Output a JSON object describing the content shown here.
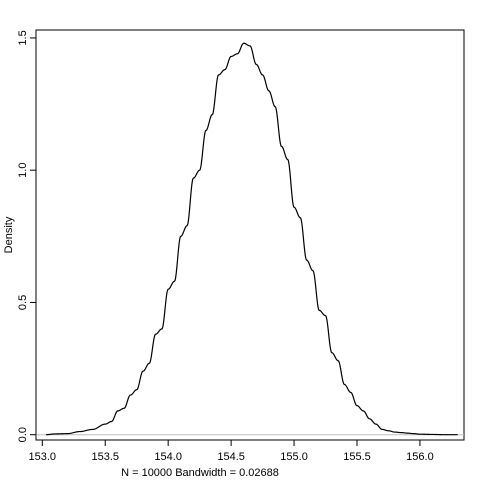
{
  "chart_data": {
    "type": "line",
    "title": "",
    "xlabel": "N = 10000   Bandwidth = 0.02688",
    "ylabel": "Density",
    "xlim": [
      152.95,
      156.35
    ],
    "ylim": [
      -0.02,
      1.53
    ],
    "x_ticks": [
      153.0,
      153.5,
      154.0,
      154.5,
      155.0,
      155.5,
      156.0
    ],
    "x_tick_labels": [
      "153.0",
      "153.5",
      "154.0",
      "154.5",
      "155.0",
      "155.5",
      "156.0"
    ],
    "y_ticks": [
      0.0,
      0.5,
      1.0,
      1.5
    ],
    "y_tick_labels": [
      "0.0",
      "0.5",
      "1.0",
      "1.5"
    ],
    "baseline": 0,
    "baseline_color": "#bebebe",
    "line_color": "#000000",
    "grid": false,
    "series": [
      {
        "x": [
          153.03,
          153.1,
          153.2,
          153.3,
          153.4,
          153.5,
          153.55,
          153.6,
          153.65,
          153.7,
          153.75,
          153.8,
          153.85,
          153.9,
          153.95,
          154.0,
          154.05,
          154.1,
          154.15,
          154.2,
          154.25,
          154.3,
          154.35,
          154.4,
          154.45,
          154.5,
          154.55,
          154.6,
          154.65,
          154.7,
          154.75,
          154.8,
          154.85,
          154.9,
          154.95,
          155.0,
          155.05,
          155.1,
          155.15,
          155.2,
          155.25,
          155.3,
          155.35,
          155.4,
          155.45,
          155.5,
          155.55,
          155.6,
          155.65,
          155.7,
          155.75,
          155.8,
          155.85,
          155.9,
          155.95,
          156.0,
          156.1,
          156.2,
          156.3
        ],
        "y": [
          0.0,
          0.003,
          0.004,
          0.012,
          0.02,
          0.04,
          0.05,
          0.09,
          0.1,
          0.15,
          0.17,
          0.24,
          0.27,
          0.38,
          0.4,
          0.55,
          0.58,
          0.75,
          0.79,
          0.97,
          1.0,
          1.15,
          1.21,
          1.36,
          1.38,
          1.43,
          1.44,
          1.48,
          1.47,
          1.4,
          1.36,
          1.3,
          1.24,
          1.09,
          1.04,
          0.86,
          0.82,
          0.66,
          0.62,
          0.47,
          0.45,
          0.31,
          0.28,
          0.19,
          0.16,
          0.11,
          0.09,
          0.06,
          0.04,
          0.02,
          0.015,
          0.01,
          0.008,
          0.006,
          0.004,
          0.002,
          0.001,
          0.0,
          0.0
        ]
      }
    ]
  }
}
